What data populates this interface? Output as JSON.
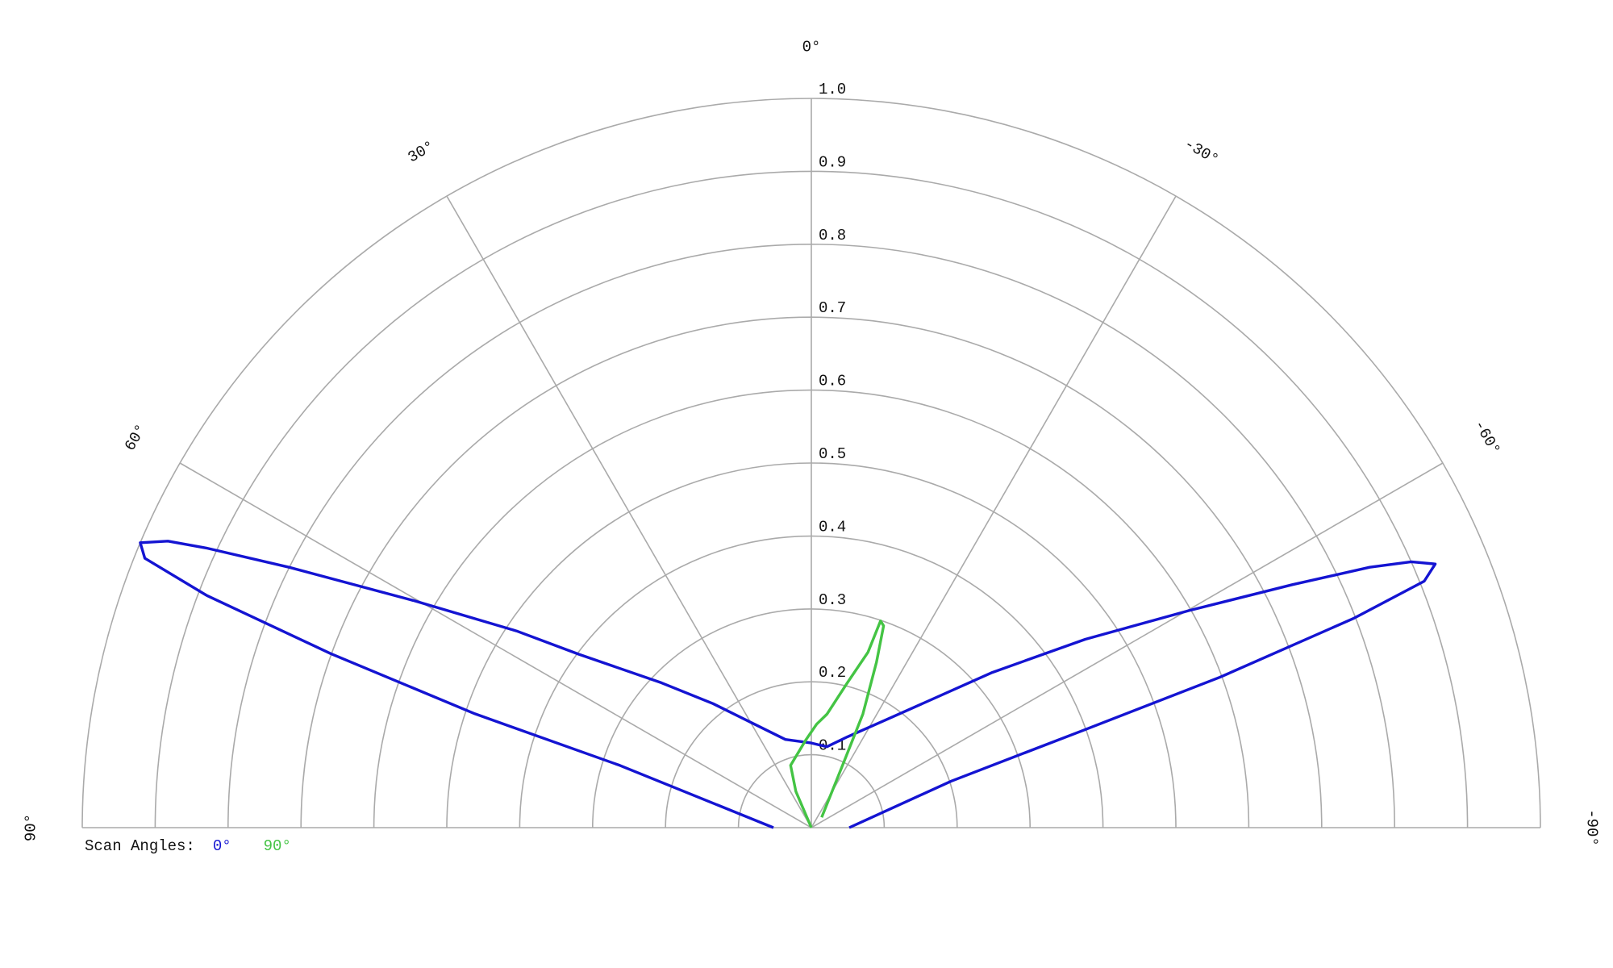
{
  "chart_data": {
    "type": "polar",
    "legend_title": "Scan Angles:",
    "thetalim": [
      90,
      -90
    ],
    "thetaticks": [
      {
        "value": 90,
        "label": "90°"
      },
      {
        "value": 60,
        "label": "60°"
      },
      {
        "value": 30,
        "label": "30°"
      },
      {
        "value": 0,
        "label": "0°"
      },
      {
        "value": -30,
        "label": "-30°"
      },
      {
        "value": -60,
        "label": "-60°"
      },
      {
        "value": -90,
        "label": "-90°"
      }
    ],
    "rlim": [
      0,
      1
    ],
    "rticks": [
      0.1,
      0.2,
      0.3,
      0.4,
      0.5,
      0.6,
      0.7,
      0.8,
      0.9,
      {
        "value": 1,
        "label": "1.0"
      }
    ],
    "grid": true,
    "series": [
      {
        "name": "0°",
        "color": "#1414d2",
        "x": [
          90,
          72.0,
          71.3,
          70.1,
          69.0,
          68.0,
          67.0,
          66.0,
          65.2,
          63.5,
          60.3,
          56.3,
          53.3,
          46.0,
          38.4,
          28.8,
          16.4,
          0,
          -10.9,
          -21.7,
          -37.7,
          -49.4,
          -55.5,
          -60.1,
          -63.2,
          -65.0,
          -66.1,
          -67.1,
          -68.1,
          -68.9,
          -69.8,
          -70.3,
          -71.6,
          -90
        ],
        "values": [
          0.052,
          0.276,
          0.487,
          0.701,
          0.888,
          0.986,
          1.0,
          0.966,
          0.914,
          0.8,
          0.629,
          0.486,
          0.398,
          0.286,
          0.217,
          0.162,
          0.126,
          0.116,
          0.113,
          0.134,
          0.197,
          0.327,
          0.456,
          0.597,
          0.739,
          0.845,
          0.9,
          0.929,
          0.906,
          0.798,
          0.597,
          0.399,
          0.202,
          0.052
        ]
      },
      {
        "name": "90°",
        "color": "#44c444",
        "x": [
          0,
          23.2,
          18.4,
          3.4,
          -2.9,
          -7.8,
          -14.0,
          -17.9,
          -18.5,
          -19.7,
          -21.5,
          -24.4,
          -26.6,
          -45
        ],
        "values": [
          0,
          0.054,
          0.09,
          0.121,
          0.142,
          0.157,
          0.205,
          0.253,
          0.299,
          0.294,
          0.244,
          0.171,
          0.095,
          0.02
        ]
      }
    ]
  }
}
